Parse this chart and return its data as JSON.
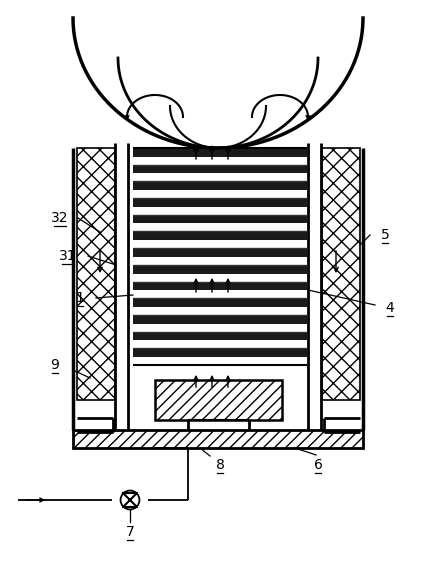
{
  "bg_color": "#ffffff",
  "line_color": "#000000",
  "fig_width": 4.37,
  "fig_height": 5.79,
  "dpi": 100
}
